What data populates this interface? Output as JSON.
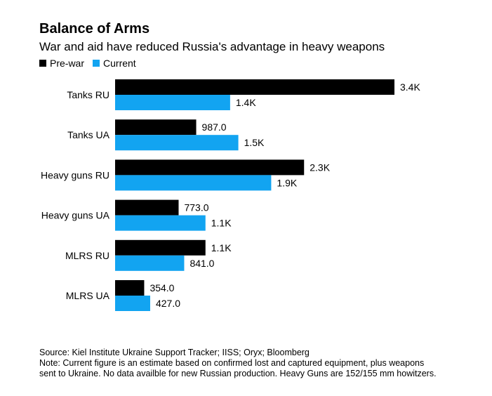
{
  "title": "Balance of Arms",
  "subtitle": "War and aid have reduced Russia's advantage in heavy weapons",
  "legend": {
    "prewar_label": "Pre-war",
    "current_label": "Current"
  },
  "colors": {
    "prewar": "#000000",
    "current": "#12a4f1"
  },
  "footnote": {
    "source": "Source: Kiel Institute Ukraine Support Tracker; IISS; Oryx; Bloomberg",
    "note_line1": "Note: Current figure is an estimate based on confirmed lost and captured equipment, plus weapons",
    "note_line2": "sent to Ukraine. No data availble for new Russian production. Heavy Guns are 152/155 mm howitzers."
  },
  "chart_data": {
    "type": "bar",
    "orientation": "horizontal",
    "title": "Balance of Arms",
    "subtitle": "War and aid have reduced Russia's advantage in heavy weapons",
    "categories": [
      "Tanks RU",
      "Tanks UA",
      "Heavy guns RU",
      "Heavy guns UA",
      "MLRS RU",
      "MLRS UA"
    ],
    "series": [
      {
        "name": "Pre-war",
        "color": "#000000",
        "values": [
          3400,
          987,
          2300,
          773,
          1100,
          354
        ],
        "labels": [
          "3.4K",
          "987.0",
          "2.3K",
          "773.0",
          "1.1K",
          "354.0"
        ]
      },
      {
        "name": "Current",
        "color": "#12a4f1",
        "values": [
          1400,
          1500,
          1900,
          1100,
          841,
          427
        ],
        "labels": [
          "1.4K",
          "1.5K",
          "1.9K",
          "1.1K",
          "841.0",
          "427.0"
        ]
      }
    ],
    "xlim": [
      0,
      3400
    ],
    "grid": false,
    "legend_position": "top-left"
  }
}
